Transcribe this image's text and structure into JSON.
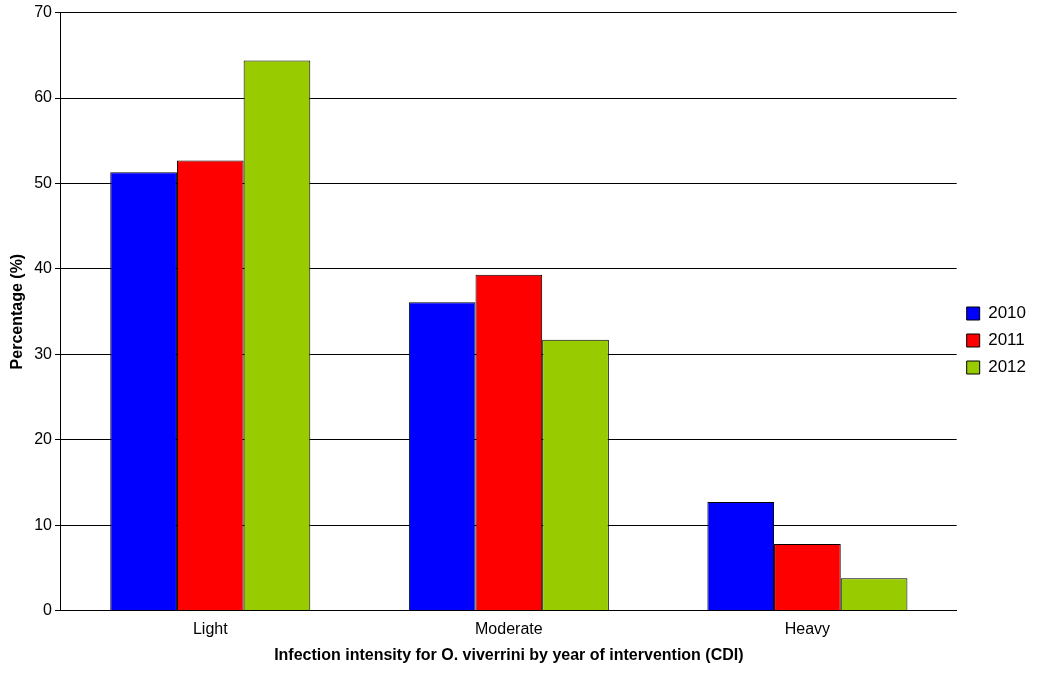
{
  "chart_data": {
    "type": "bar",
    "xlabel": "Infection intensity for O. viverrini by year of intervention (CDI)",
    "ylabel": "Percentage (%)",
    "categories": [
      "Light",
      "Moderate",
      "Heavy"
    ],
    "series": [
      {
        "name": "2010",
        "color": "#0000ff",
        "values": [
          51.3,
          36.1,
          12.7
        ]
      },
      {
        "name": "2011",
        "color": "#ff0000",
        "values": [
          52.7,
          39.3,
          7.8
        ]
      },
      {
        "name": "2012",
        "color": "#99cc00",
        "values": [
          64.4,
          31.7,
          3.8
        ]
      }
    ],
    "ylim": [
      0,
      70
    ],
    "yticks": [
      0,
      10,
      20,
      30,
      40,
      50,
      60,
      70
    ],
    "grid": "y",
    "legend": "right"
  }
}
